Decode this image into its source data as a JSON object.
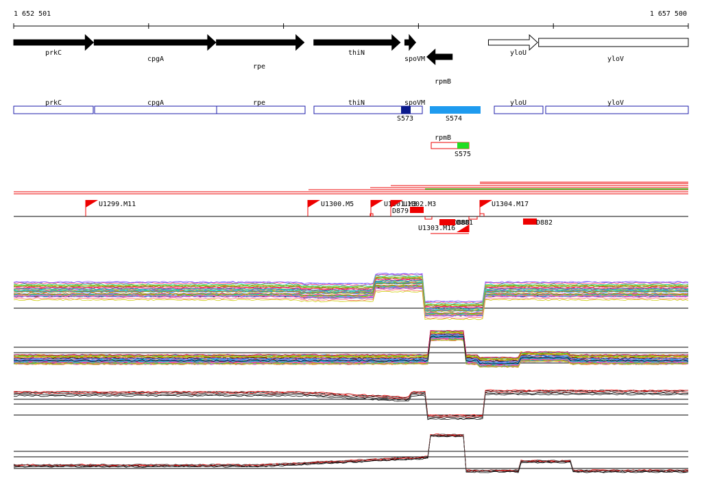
{
  "ruler": {
    "start_label": "1 652 501",
    "end_label": "1 657 500",
    "start": 1652501,
    "end": 1657500
  },
  "genes": [
    {
      "name": "prkC",
      "start": 1652501,
      "end": 1653092,
      "strand": "+",
      "fill": "black"
    },
    {
      "name": "cpgA",
      "start": 1653097,
      "end": 1653999,
      "strand": "+",
      "fill": "black"
    },
    {
      "name": "rpe",
      "start": 1654003,
      "end": 1654653,
      "strand": "+",
      "fill": "black"
    },
    {
      "name": "thiN",
      "start": 1654725,
      "end": 1655365,
      "strand": "+",
      "fill": "black"
    },
    {
      "name": "spoVM",
      "start": 1655399,
      "end": 1655480,
      "strand": "+",
      "fill": "black"
    },
    {
      "name": "rpmB",
      "start": 1655563,
      "end": 1655751,
      "strand": "-",
      "fill": "black"
    },
    {
      "name": "yloU",
      "start": 1656019,
      "end": 1656383,
      "strand": "+",
      "fill": "white"
    },
    {
      "name": "yloV",
      "start": 1656391,
      "end": 1657500,
      "strand": "+",
      "fill": "white"
    }
  ],
  "gene_labels": [
    "prkC",
    "cpgA",
    "rpe",
    "thiN",
    "spoVM",
    "rpmB",
    "yloU",
    "yloV"
  ],
  "operon_boxes": [
    {
      "label": "prkC",
      "start": 1652501,
      "end": 1653092
    },
    {
      "label": "cpgA",
      "start": 1653097,
      "end": 1653999
    },
    {
      "label": "rpe",
      "start": 1654003,
      "end": 1654653
    },
    {
      "label": "thiN",
      "start": 1654725,
      "end": 1655479
    },
    {
      "label": "spoVM",
      "start": 1654725,
      "end": 1655479
    },
    {
      "label": "yloU",
      "start": 1656019,
      "end": 1656383
    },
    {
      "label": "yloV",
      "start": 1656391,
      "end": 1657500
    }
  ],
  "operon_labels": [
    "prkC",
    "cpgA",
    "rpe",
    "thiN",
    "spoVM",
    "yloU",
    "yloV"
  ],
  "segments": [
    {
      "label": "S573",
      "start": 1655328,
      "end": 1655399,
      "color": "#0a1a8c"
    },
    {
      "label": "S574",
      "start": 1655543,
      "end": 1655920,
      "color": "#1e9bef"
    },
    {
      "label": "S575",
      "start": 1655687,
      "end": 1655785,
      "color": "#22dd22"
    }
  ],
  "rpmB_box": {
    "label": "rpmB",
    "start": 1655487,
    "end": 1655785
  },
  "promoters": [
    {
      "label": "U1299.M11",
      "pos": 1653032
    },
    {
      "label": "U1300.M5",
      "pos": 1654451
    },
    {
      "label": "U1301.M3",
      "pos": 1655116
    },
    {
      "label": "U1302.M3",
      "pos": 1655258
    },
    {
      "label": "U1303.M16",
      "pos": 1655801
    },
    {
      "label": "U1304.M17",
      "pos": 1655951
    }
  ],
  "promoter_labels": [
    "U1299.M11",
    "U1300.M5",
    "U1301.M3",
    "U1302.M3",
    "U1303.M16",
    "U1304.M17"
  ],
  "terminators": [
    {
      "label": "D879",
      "pos": 1655399
    },
    {
      "label": "D880",
      "pos": 1655615
    },
    {
      "label": "D881",
      "pos": 1655655
    },
    {
      "label": "D882",
      "pos": 1656208
    }
  ],
  "terminator_labels": [
    "D879",
    "D880",
    "D881",
    "D882"
  ],
  "colors": {
    "promoter": "#ff0000",
    "operon_outline": "#1a1aa8",
    "coverage_red": "#ee0000"
  }
}
